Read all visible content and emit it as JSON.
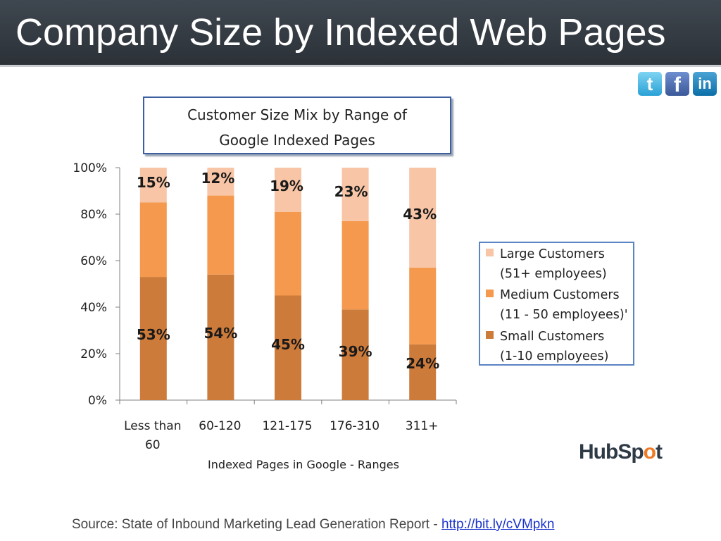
{
  "slide": {
    "title": "Company Size by Indexed Web Pages",
    "source_text": "Source: State of Inbound Marketing Lead Generation Report - ",
    "source_link": "http://bit.ly/cVMpkn",
    "logo": {
      "pre": "HubSp",
      "accent": "o",
      "post": "t"
    }
  },
  "social": [
    {
      "name": "twitter-icon",
      "glyph": "t",
      "color": "#2aa1d6"
    },
    {
      "name": "facebook-icon",
      "glyph": "f",
      "color": "#3b5998"
    },
    {
      "name": "linkedin-icon",
      "glyph": "in",
      "color": "#0d6fa8"
    }
  ],
  "chart_data": {
    "type": "bar",
    "stacked": true,
    "title_lines": [
      "Customer Size Mix by Range of",
      "Google Indexed Pages"
    ],
    "xlabel": "Indexed Pages in Google - Ranges",
    "ylabel": "",
    "categories": [
      "Less than 60",
      "60-120",
      "121-175",
      "176-310",
      "311+"
    ],
    "yticks": [
      "0%",
      "20%",
      "40%",
      "60%",
      "80%",
      "100%"
    ],
    "ylim": [
      0,
      100
    ],
    "grid": false,
    "legend_position": "right",
    "series": [
      {
        "name": "Small Customers (1-10 employees)",
        "legend_lines": [
          "Small Customers",
          "(1-10 employees)"
        ],
        "color": "#cd7b3a",
        "values": [
          53,
          54,
          45,
          39,
          24
        ],
        "labels": [
          "53%",
          "54%",
          "45%",
          "39%",
          "24%"
        ]
      },
      {
        "name": "Medium Customers (11 - 50 employees)'",
        "legend_lines": [
          "Medium Customers",
          "(11 - 50 employees)'"
        ],
        "color": "#f4994e",
        "values": [
          32,
          34,
          36,
          38,
          33
        ],
        "labels": []
      },
      {
        "name": "Large Customers (51+ employees)",
        "legend_lines": [
          "Large Customers",
          "(51+ employees)"
        ],
        "color": "#f8c5a6",
        "values": [
          15,
          12,
          19,
          23,
          43
        ],
        "labels": [
          "15%",
          "12%",
          "19%",
          "23%",
          "43%"
        ]
      }
    ],
    "legend_order": [
      2,
      1,
      0
    ]
  }
}
